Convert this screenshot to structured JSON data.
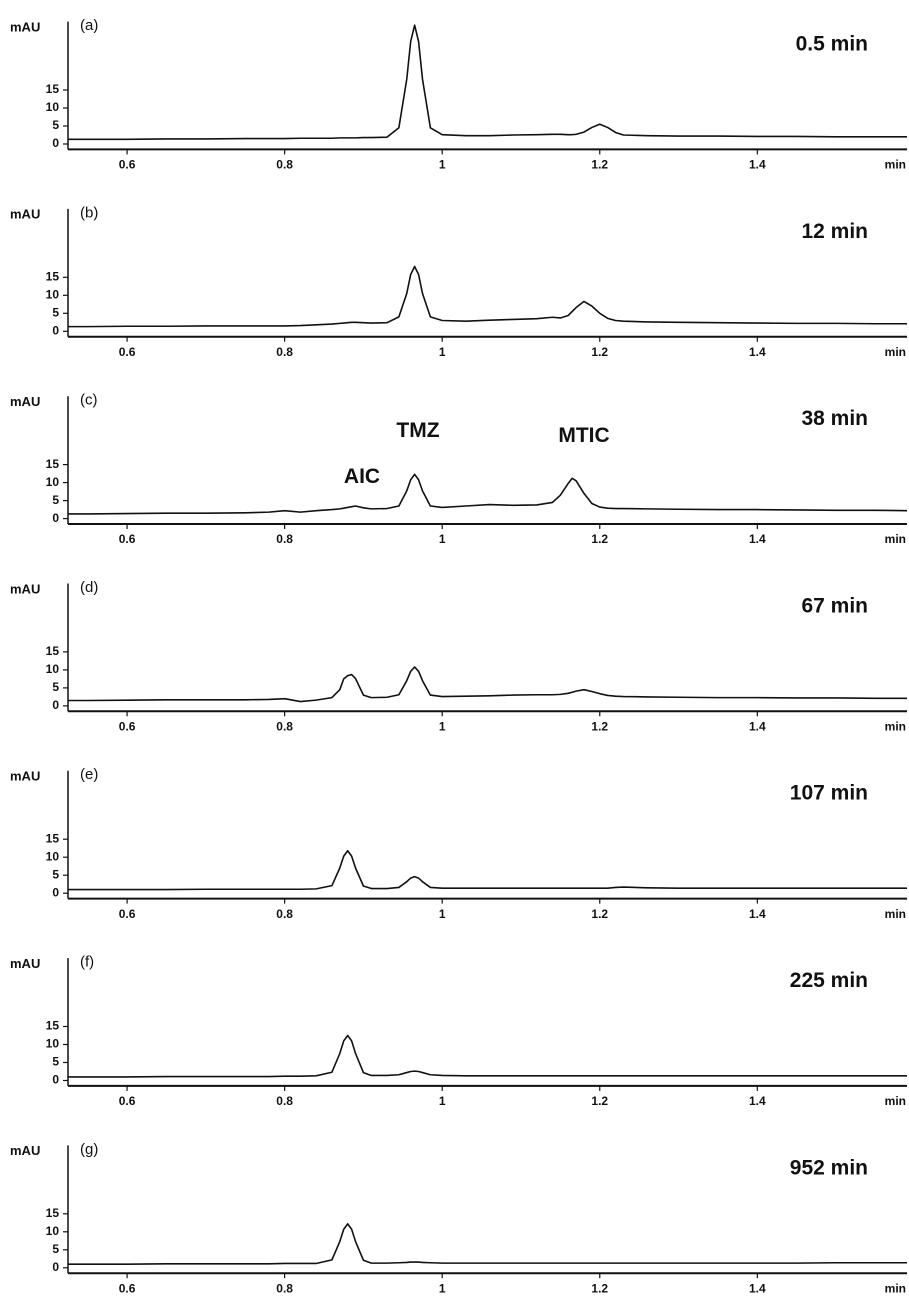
{
  "chart_data": [
    {
      "type": "line",
      "label": "(a)",
      "title": "0.5 min",
      "y_label": "mAU",
      "x_label": "min",
      "x": [
        0.525,
        0.55,
        0.6,
        0.65,
        0.7,
        0.75,
        0.78,
        0.8,
        0.82,
        0.84,
        0.86,
        0.87,
        0.875,
        0.88,
        0.885,
        0.89,
        0.9,
        0.91,
        0.93,
        0.945,
        0.955,
        0.96,
        0.965,
        0.97,
        0.975,
        0.985,
        1.0,
        1.03,
        1.06,
        1.09,
        1.12,
        1.14,
        1.15,
        1.16,
        1.165,
        1.17,
        1.18,
        1.19,
        1.2,
        1.21,
        1.22,
        1.23,
        1.26,
        1.3,
        1.35,
        1.4,
        1.45,
        1.5,
        1.55,
        1.59
      ],
      "series": [
        {
          "color": "#111111",
          "values": [
            1.3,
            1.3,
            1.3,
            1.4,
            1.4,
            1.5,
            1.5,
            1.5,
            1.6,
            1.6,
            1.6,
            1.7,
            1.7,
            1.7,
            1.7,
            1.7,
            1.8,
            1.8,
            1.9,
            4.5,
            18,
            28.5,
            33,
            28.5,
            18,
            4.5,
            2.6,
            2.3,
            2.3,
            2.5,
            2.6,
            2.7,
            2.7,
            2.6,
            2.6,
            2.7,
            3.3,
            4.6,
            5.5,
            4.6,
            3.2,
            2.5,
            2.3,
            2.2,
            2.2,
            2.1,
            2.1,
            2.0,
            2.0,
            2.0
          ]
        }
      ],
      "xlim": [
        0.525,
        1.59
      ],
      "xticks": [
        0.6,
        0.8,
        1,
        1.2,
        1.4
      ],
      "ylim": [
        -1.5,
        34
      ],
      "yticks": [
        0,
        5,
        10,
        15
      ]
    },
    {
      "type": "line",
      "label": "(b)",
      "title": "12 min",
      "y_label": "mAU",
      "x_label": "min",
      "x": [
        0.525,
        0.55,
        0.6,
        0.65,
        0.7,
        0.75,
        0.78,
        0.8,
        0.82,
        0.84,
        0.86,
        0.87,
        0.875,
        0.88,
        0.885,
        0.89,
        0.9,
        0.91,
        0.93,
        0.945,
        0.955,
        0.96,
        0.965,
        0.97,
        0.975,
        0.985,
        1.0,
        1.03,
        1.06,
        1.09,
        1.12,
        1.14,
        1.15,
        1.16,
        1.165,
        1.17,
        1.18,
        1.19,
        1.2,
        1.21,
        1.22,
        1.23,
        1.26,
        1.3,
        1.35,
        1.4,
        1.45,
        1.5,
        1.55,
        1.59
      ],
      "series": [
        {
          "color": "#111111",
          "values": [
            1.3,
            1.3,
            1.4,
            1.4,
            1.5,
            1.5,
            1.5,
            1.5,
            1.6,
            1.8,
            2.0,
            2.2,
            2.3,
            2.4,
            2.5,
            2.5,
            2.4,
            2.3,
            2.4,
            4.0,
            10.5,
            15.8,
            18,
            15.8,
            10.5,
            4.0,
            3.0,
            2.8,
            3.1,
            3.3,
            3.5,
            3.9,
            3.7,
            4.4,
            5.5,
            6.6,
            8.3,
            7.0,
            5.0,
            3.6,
            3.0,
            2.8,
            2.6,
            2.5,
            2.4,
            2.3,
            2.2,
            2.2,
            2.1,
            2.1
          ]
        }
      ],
      "xlim": [
        0.525,
        1.59
      ],
      "xticks": [
        0.6,
        0.8,
        1,
        1.2,
        1.4
      ],
      "ylim": [
        -1.5,
        34
      ],
      "yticks": [
        0,
        5,
        10,
        15
      ]
    },
    {
      "type": "line",
      "label": "(c)",
      "title": "38 min",
      "y_label": "mAU",
      "x_label": "min",
      "annotations": [
        "AIC",
        "TMZ",
        "MTIC"
      ],
      "x": [
        0.525,
        0.55,
        0.6,
        0.65,
        0.7,
        0.75,
        0.78,
        0.8,
        0.82,
        0.84,
        0.86,
        0.87,
        0.875,
        0.88,
        0.885,
        0.89,
        0.9,
        0.91,
        0.93,
        0.945,
        0.955,
        0.96,
        0.965,
        0.97,
        0.975,
        0.985,
        1.0,
        1.03,
        1.06,
        1.09,
        1.12,
        1.14,
        1.15,
        1.16,
        1.165,
        1.17,
        1.18,
        1.19,
        1.2,
        1.21,
        1.22,
        1.23,
        1.26,
        1.3,
        1.35,
        1.4,
        1.45,
        1.5,
        1.55,
        1.59
      ],
      "series": [
        {
          "color": "#111111",
          "values": [
            1.3,
            1.3,
            1.4,
            1.5,
            1.5,
            1.6,
            1.8,
            2.2,
            1.8,
            2.2,
            2.5,
            2.7,
            2.9,
            3.1,
            3.3,
            3.5,
            3.0,
            2.7,
            2.8,
            3.5,
            7.7,
            10.8,
            12.3,
            10.8,
            7.7,
            3.5,
            3.1,
            3.5,
            3.9,
            3.7,
            3.8,
            4.5,
            6.5,
            9.8,
            11.2,
            10.5,
            7.0,
            4.2,
            3.2,
            2.9,
            2.8,
            2.8,
            2.7,
            2.6,
            2.5,
            2.5,
            2.4,
            2.3,
            2.3,
            2.2
          ]
        }
      ],
      "xlim": [
        0.525,
        1.59
      ],
      "xticks": [
        0.6,
        0.8,
        1,
        1.2,
        1.4
      ],
      "ylim": [
        -1.5,
        34
      ],
      "yticks": [
        0,
        5,
        10,
        15
      ]
    },
    {
      "type": "line",
      "label": "(d)",
      "title": "67 min",
      "y_label": "mAU",
      "x_label": "min",
      "x": [
        0.525,
        0.55,
        0.6,
        0.65,
        0.7,
        0.75,
        0.78,
        0.8,
        0.82,
        0.84,
        0.86,
        0.87,
        0.875,
        0.88,
        0.885,
        0.89,
        0.9,
        0.91,
        0.93,
        0.945,
        0.955,
        0.96,
        0.965,
        0.97,
        0.975,
        0.985,
        1.0,
        1.03,
        1.06,
        1.09,
        1.12,
        1.14,
        1.15,
        1.16,
        1.165,
        1.17,
        1.18,
        1.19,
        1.2,
        1.21,
        1.22,
        1.23,
        1.26,
        1.3,
        1.35,
        1.4,
        1.45,
        1.5,
        1.55,
        1.59
      ],
      "series": [
        {
          "color": "#111111",
          "values": [
            1.5,
            1.5,
            1.6,
            1.7,
            1.7,
            1.7,
            1.8,
            2.0,
            1.2,
            1.6,
            2.3,
            4.5,
            7.5,
            8.4,
            8.7,
            7.6,
            3.0,
            2.3,
            2.4,
            3.1,
            7.0,
            9.6,
            10.8,
            9.6,
            7.0,
            3.0,
            2.6,
            2.7,
            2.8,
            3.0,
            3.1,
            3.1,
            3.2,
            3.5,
            3.8,
            4.1,
            4.5,
            4.0,
            3.4,
            2.9,
            2.7,
            2.6,
            2.5,
            2.4,
            2.3,
            2.3,
            2.2,
            2.2,
            2.1,
            2.1
          ]
        }
      ],
      "xlim": [
        0.525,
        1.59
      ],
      "xticks": [
        0.6,
        0.8,
        1,
        1.2,
        1.4
      ],
      "ylim": [
        -1.5,
        34
      ],
      "yticks": [
        0,
        5,
        10,
        15
      ]
    },
    {
      "type": "line",
      "label": "(e)",
      "title": "107 min",
      "y_label": "mAU",
      "x_label": "min",
      "x": [
        0.525,
        0.55,
        0.6,
        0.65,
        0.7,
        0.75,
        0.78,
        0.8,
        0.82,
        0.84,
        0.86,
        0.87,
        0.875,
        0.88,
        0.885,
        0.89,
        0.9,
        0.91,
        0.93,
        0.945,
        0.955,
        0.96,
        0.965,
        0.97,
        0.975,
        0.985,
        1.0,
        1.03,
        1.06,
        1.09,
        1.12,
        1.14,
        1.15,
        1.16,
        1.165,
        1.17,
        1.18,
        1.19,
        1.2,
        1.21,
        1.22,
        1.23,
        1.26,
        1.3,
        1.35,
        1.4,
        1.45,
        1.5,
        1.55,
        1.59
      ],
      "series": [
        {
          "color": "#111111",
          "values": [
            1.0,
            1.0,
            1.0,
            1.0,
            1.1,
            1.1,
            1.1,
            1.1,
            1.1,
            1.2,
            2.1,
            7.0,
            10.3,
            11.8,
            10.3,
            7.0,
            2.0,
            1.3,
            1.3,
            1.6,
            3.2,
            4.2,
            4.6,
            4.2,
            3.2,
            1.6,
            1.4,
            1.4,
            1.4,
            1.4,
            1.4,
            1.4,
            1.4,
            1.4,
            1.4,
            1.4,
            1.4,
            1.4,
            1.4,
            1.4,
            1.6,
            1.7,
            1.5,
            1.4,
            1.4,
            1.4,
            1.4,
            1.4,
            1.4,
            1.4
          ]
        }
      ],
      "xlim": [
        0.525,
        1.59
      ],
      "xticks": [
        0.6,
        0.8,
        1,
        1.2,
        1.4
      ],
      "ylim": [
        -1.5,
        34
      ],
      "yticks": [
        0,
        5,
        10,
        15
      ]
    },
    {
      "type": "line",
      "label": "(f)",
      "title": "225 min",
      "y_label": "mAU",
      "x_label": "min",
      "x": [
        0.525,
        0.55,
        0.6,
        0.65,
        0.7,
        0.75,
        0.78,
        0.8,
        0.82,
        0.84,
        0.86,
        0.87,
        0.875,
        0.88,
        0.885,
        0.89,
        0.9,
        0.91,
        0.93,
        0.945,
        0.955,
        0.96,
        0.965,
        0.97,
        0.975,
        0.985,
        1.0,
        1.03,
        1.06,
        1.09,
        1.12,
        1.14,
        1.15,
        1.16,
        1.165,
        1.17,
        1.18,
        1.19,
        1.2,
        1.21,
        1.22,
        1.23,
        1.26,
        1.3,
        1.35,
        1.4,
        1.45,
        1.5,
        1.55,
        1.59
      ],
      "series": [
        {
          "color": "#111111",
          "values": [
            1.0,
            1.0,
            1.0,
            1.1,
            1.1,
            1.1,
            1.1,
            1.2,
            1.2,
            1.3,
            2.3,
            7.5,
            11.0,
            12.5,
            11.0,
            7.5,
            2.2,
            1.4,
            1.4,
            1.6,
            2.2,
            2.5,
            2.6,
            2.5,
            2.2,
            1.6,
            1.4,
            1.3,
            1.3,
            1.3,
            1.3,
            1.3,
            1.3,
            1.3,
            1.3,
            1.3,
            1.3,
            1.3,
            1.3,
            1.3,
            1.3,
            1.3,
            1.3,
            1.3,
            1.3,
            1.3,
            1.3,
            1.3,
            1.3,
            1.3
          ]
        }
      ],
      "xlim": [
        0.525,
        1.59
      ],
      "xticks": [
        0.6,
        0.8,
        1,
        1.2,
        1.4
      ],
      "ylim": [
        -1.5,
        34
      ],
      "yticks": [
        0,
        5,
        10,
        15
      ]
    },
    {
      "type": "line",
      "label": "(g)",
      "title": "952 min",
      "y_label": "mAU",
      "x_label": "min",
      "x": [
        0.525,
        0.55,
        0.6,
        0.65,
        0.7,
        0.75,
        0.78,
        0.8,
        0.82,
        0.84,
        0.86,
        0.87,
        0.875,
        0.88,
        0.885,
        0.89,
        0.9,
        0.91,
        0.93,
        0.945,
        0.955,
        0.96,
        0.965,
        0.97,
        0.975,
        0.985,
        1.0,
        1.03,
        1.06,
        1.09,
        1.12,
        1.14,
        1.15,
        1.16,
        1.165,
        1.17,
        1.18,
        1.19,
        1.2,
        1.21,
        1.22,
        1.23,
        1.26,
        1.3,
        1.35,
        1.4,
        1.45,
        1.5,
        1.55,
        1.59
      ],
      "series": [
        {
          "color": "#111111",
          "values": [
            1.0,
            1.0,
            1.0,
            1.1,
            1.1,
            1.1,
            1.1,
            1.2,
            1.2,
            1.2,
            2.2,
            7.3,
            10.7,
            12.2,
            10.7,
            7.3,
            2.1,
            1.3,
            1.3,
            1.4,
            1.5,
            1.6,
            1.6,
            1.6,
            1.5,
            1.4,
            1.3,
            1.3,
            1.3,
            1.3,
            1.3,
            1.3,
            1.3,
            1.3,
            1.3,
            1.3,
            1.3,
            1.3,
            1.3,
            1.3,
            1.3,
            1.3,
            1.3,
            1.3,
            1.3,
            1.3,
            1.3,
            1.4,
            1.4,
            1.4
          ]
        }
      ],
      "xlim": [
        0.525,
        1.59
      ],
      "xticks": [
        0.6,
        0.8,
        1,
        1.2,
        1.4
      ],
      "ylim": [
        -1.5,
        34
      ],
      "yticks": [
        0,
        5,
        10,
        15
      ]
    }
  ]
}
